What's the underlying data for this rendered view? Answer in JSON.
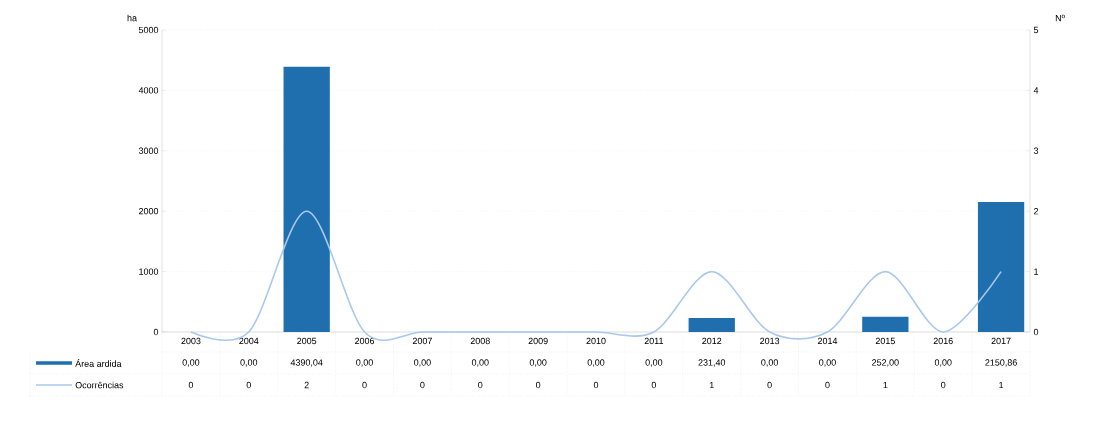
{
  "chart_data": {
    "type": "bar",
    "categories": [
      "2003",
      "2004",
      "2005",
      "2006",
      "2007",
      "2008",
      "2009",
      "2010",
      "2011",
      "2012",
      "2013",
      "2014",
      "2015",
      "2016",
      "2017"
    ],
    "series": [
      {
        "name": "Área ardida",
        "color": "#1f6fae",
        "values": [
          0,
          0,
          4390.04,
          0,
          0,
          0,
          0,
          0,
          0,
          231.4,
          0,
          0,
          252,
          0,
          2150.86
        ],
        "value_labels": [
          "0,00",
          "0,00",
          "4390,04",
          "0,00",
          "0,00",
          "0,00",
          "0,00",
          "0,00",
          "0,00",
          "231,40",
          "0,00",
          "0,00",
          "252,00",
          "0,00",
          "2150,86"
        ]
      },
      {
        "name": "Ocorrências",
        "type": "line",
        "axis": "y2",
        "color": "#a9c8ee",
        "values": [
          0,
          0,
          2,
          0,
          0,
          0,
          0,
          0,
          0,
          1,
          0,
          0,
          1,
          0,
          1
        ],
        "value_labels": [
          "0",
          "0",
          "2",
          "0",
          "0",
          "0",
          "0",
          "0",
          "0",
          "1",
          "0",
          "0",
          "1",
          "0",
          "1"
        ]
      }
    ],
    "ylabel": "ha",
    "y2label": "Nº",
    "ylim": [
      0,
      5000
    ],
    "yticks": [
      0,
      1000,
      2000,
      3000,
      4000,
      5000
    ],
    "y2lim": [
      0,
      5
    ],
    "y2ticks": [
      0,
      1,
      2,
      3,
      4,
      5
    ],
    "grid": "y",
    "legend": "bottom"
  }
}
